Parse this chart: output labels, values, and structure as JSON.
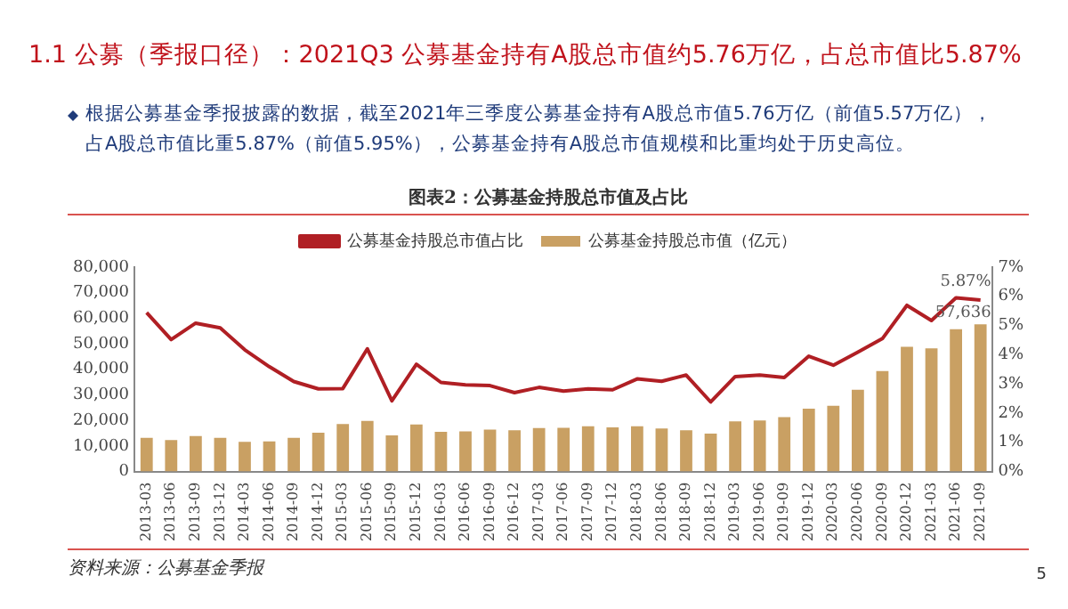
{
  "chart_data": {
    "type": "bar",
    "title": "1.1 公募（季报口径）：2021Q3 公募基金持有A股总市值约5.76万亿，占总市值比5.87%",
    "subtitle": "根据公募基金季报披露的数据，截至2021年三季度公募基金持有A股总市值5.76万亿（前值5.57万亿），占A股总市值比重5.87%（前值5.95%），公募基金持有A股总市值规模和比重均处于历史高位。",
    "legend_title": "图表2：公募基金持股总市值及占比",
    "categories": [
      "2013-03",
      "2013-06",
      "2013-09",
      "2013-12",
      "2014-03",
      "2014-06",
      "2014-09",
      "2014-12",
      "2015-03",
      "2015-06",
      "2015-09",
      "2015-12",
      "2016-03",
      "2016-06",
      "2016-09",
      "2016-12",
      "2017-03",
      "2017-06",
      "2017-09",
      "2017-12",
      "2018-03",
      "2018-06",
      "2018-09",
      "2018-12",
      "2019-03",
      "2019-06",
      "2019-09",
      "2019-12",
      "2020-03",
      "2020-06",
      "2020-09",
      "2020-12",
      "2021-03",
      "2021-06",
      "2021-09"
    ],
    "series": [
      {
        "name": "公募基金持股总市值（亿元）",
        "color": "#c9a063",
        "values": [
          13200,
          12300,
          13900,
          13200,
          11600,
          11800,
          13200,
          15200,
          18600,
          19800,
          14100,
          18400,
          15500,
          15700,
          16400,
          16100,
          17000,
          17100,
          17700,
          17300,
          17700,
          16800,
          16100,
          14800,
          19600,
          20000,
          21300,
          24600,
          25700,
          32000,
          39300,
          48800,
          48200,
          55700,
          57636
        ],
        "value_labels": [
          null,
          null,
          null,
          null,
          null,
          null,
          null,
          null,
          null,
          null,
          null,
          null,
          null,
          null,
          null,
          null,
          null,
          null,
          null,
          null,
          null,
          null,
          null,
          null,
          null,
          null,
          null,
          null,
          null,
          null,
          null,
          null,
          null,
          null,
          "57,636"
        ]
      },
      {
        "name": "公募基金持股总市值占比",
        "type": "line",
        "axis": "y2",
        "color": "#b01f24",
        "values": [
          5.44,
          4.52,
          5.08,
          4.92,
          4.17,
          3.59,
          3.08,
          2.83,
          2.84,
          4.2,
          2.42,
          3.67,
          3.05,
          2.97,
          2.94,
          2.7,
          2.88,
          2.75,
          2.83,
          2.8,
          3.17,
          3.09,
          3.3,
          2.38,
          3.25,
          3.3,
          3.22,
          3.95,
          3.64,
          4.09,
          4.55,
          5.69,
          5.17,
          5.95,
          5.87
        ],
        "value_labels": [
          null,
          null,
          null,
          null,
          null,
          null,
          null,
          null,
          null,
          null,
          null,
          null,
          null,
          null,
          null,
          null,
          null,
          null,
          null,
          null,
          null,
          null,
          null,
          null,
          null,
          null,
          null,
          null,
          null,
          null,
          null,
          null,
          null,
          null,
          "5.87%"
        ]
      }
    ],
    "ylim": [
      0,
      80000
    ],
    "yticks": [
      0,
      {
        "value": 10000,
        "label": "10,000"
      },
      {
        "value": 20000,
        "label": "20,000"
      },
      {
        "value": 30000,
        "label": "30,000"
      },
      {
        "value": 40000,
        "label": "40,000"
      },
      {
        "value": 50000,
        "label": "50,000"
      },
      {
        "value": 60000,
        "label": "60,000"
      },
      {
        "value": 70000,
        "label": "70,000"
      },
      {
        "value": 80000,
        "label": "80,000"
      }
    ],
    "y2lim": [
      0,
      7
    ],
    "y2ticks": [
      {
        "value": 0,
        "label": "0%"
      },
      {
        "value": 1,
        "label": "1%"
      },
      {
        "value": 2,
        "label": "2%"
      },
      {
        "value": 3,
        "label": "3%"
      },
      {
        "value": 4,
        "label": "4%"
      },
      {
        "value": 5,
        "label": "5%"
      },
      {
        "value": 6,
        "label": "6%"
      },
      {
        "value": 7,
        "label": "7%"
      }
    ],
    "grid": false,
    "legend": "top",
    "marker": "none",
    "annotations": [
      "资料来源：公募基金季报",
      "5"
    ]
  }
}
